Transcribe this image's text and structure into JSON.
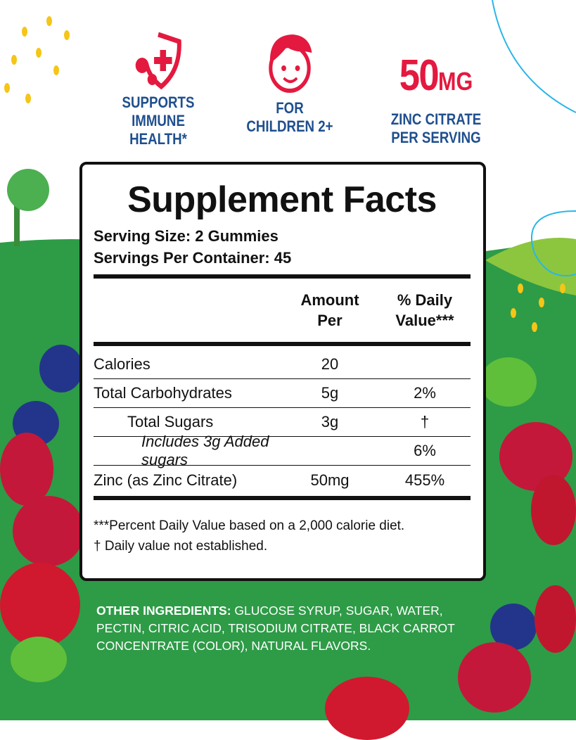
{
  "colors": {
    "accent_red": "#e4193f",
    "text_blue": "#1f4f8e",
    "background_green": "#2e9b47"
  },
  "badges": [
    {
      "icon": "shield-virus-icon",
      "line1": "SUPPORTS",
      "line2": "IMMUNE HEALTH*"
    },
    {
      "icon": "child-face-icon",
      "line1": "FOR",
      "line2": "CHILDREN 2+"
    },
    {
      "big_value": "50",
      "big_unit": "MG",
      "line1": "ZINC CITRATE",
      "line2": "PER SERVING"
    }
  ],
  "facts": {
    "title": "Supplement Facts",
    "serving_size": "Serving Size: 2 Gummies",
    "servings_per_container": "Servings Per Container: 45",
    "headers": {
      "amount": "Amount Per",
      "daily": "% Daily Value***"
    },
    "rows": [
      {
        "name": "Calories",
        "amount": "20",
        "dv": ""
      },
      {
        "name": "Total Carbohydrates",
        "amount": "5g",
        "dv": "2%"
      },
      {
        "name": "Total Sugars",
        "amount": "3g",
        "dv": "†"
      },
      {
        "name": "Includes 3g Added sugars",
        "amount": "",
        "dv": "6%"
      },
      {
        "name": "Zinc (as Zinc Citrate)",
        "amount": "50mg",
        "dv": "455%"
      }
    ],
    "footnote1": "***Percent Daily Value based on a 2,000 calorie diet.",
    "footnote2": "† Daily value not established."
  },
  "ingredients": {
    "label": "OTHER INGREDIENTS:",
    "text": " GLUCOSE SYRUP, SUGAR, WATER, PECTIN, CITRIC ACID, TRISODIUM CITRATE, BLACK CARROT CONCENTRATE (COLOR), NATURAL FLAVORS."
  }
}
